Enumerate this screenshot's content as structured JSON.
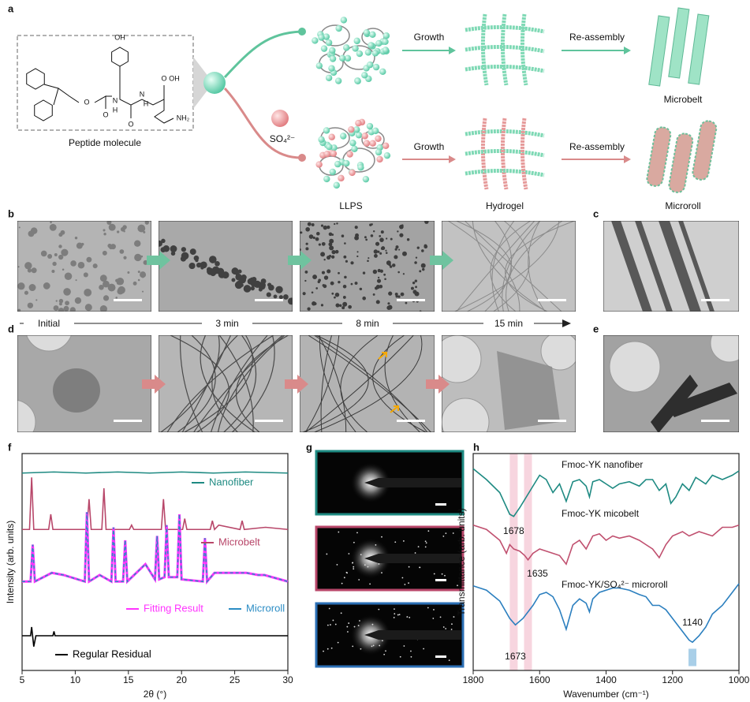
{
  "panel_labels": [
    "a",
    "b",
    "c",
    "d",
    "e",
    "f",
    "g",
    "h"
  ],
  "diagram": {
    "molecule_label": "Peptide molecule",
    "atoms": [
      "OH",
      "O",
      "O",
      "N",
      "H",
      "N",
      "H",
      "O",
      "O",
      "OH",
      "NH₂"
    ],
    "ion_label": "SO₄²⁻",
    "growth": [
      "Growth",
      "Growth"
    ],
    "reassembly": [
      "Re-assembly",
      "Re-assembly"
    ],
    "stage_labels": [
      "LLPS",
      "Hydrogel"
    ],
    "product_labels": [
      "Microbelt",
      "Microroll"
    ]
  },
  "timeline": [
    "Initial",
    "3 min",
    "8 min",
    "15 min"
  ],
  "chart_data": [
    {
      "type": "line",
      "xlabel": "2θ (°)",
      "ylabel": "Intensity (arb. units)",
      "xlim": [
        5,
        30
      ],
      "xticks": [
        5,
        10,
        15,
        20,
        25,
        30
      ],
      "ylim": [
        0,
        100
      ],
      "series": [
        {
          "name": "Nanofiber",
          "color": "#1e8a82",
          "x": [
            5,
            8,
            11,
            14,
            17,
            20,
            23,
            26,
            30
          ],
          "values": [
            91,
            91.5,
            91,
            91.5,
            91,
            91.5,
            91,
            91.5,
            91
          ]
        },
        {
          "name": "Microbelt",
          "color": "#b8476a",
          "x": [
            5,
            5.7,
            5.9,
            6.1,
            7.5,
            7.7,
            7.9,
            11.1,
            11.3,
            11.5,
            12.5,
            12.7,
            12.9,
            15.1,
            15.3,
            15.5,
            18.1,
            18.3,
            18.5,
            20.1,
            20.3,
            20.5,
            22.7,
            22.9,
            23.1,
            23.5,
            25.5,
            25.7,
            25.9,
            27.9,
            30
          ],
          "values": [
            65,
            65,
            89,
            65,
            65,
            72,
            65,
            65,
            79,
            65,
            65,
            84,
            65,
            65,
            67,
            65,
            65,
            79,
            65,
            65,
            70,
            65,
            65,
            69,
            65,
            67,
            65,
            69,
            65,
            66,
            65
          ]
        },
        {
          "name": "Fitting Result",
          "color": "#ff33ff",
          "x": [
            5,
            5.8,
            6.0,
            6.2,
            7.8,
            8.9,
            10.9,
            11.1,
            11.3,
            12.3,
            13.4,
            13.6,
            13.8,
            14.5,
            14.7,
            14.9,
            16.6,
            17.5,
            17.7,
            17.9,
            18.4,
            18.6,
            18.8,
            19.6,
            19.8,
            20.0,
            22.0,
            22.2,
            22.4,
            23.1,
            26.1,
            27.2,
            27.8,
            30
          ],
          "values": [
            41,
            41,
            58,
            41,
            45,
            44,
            41,
            73,
            41,
            44,
            41,
            66,
            41,
            41,
            60,
            41,
            49,
            42,
            62,
            42,
            43,
            67,
            43,
            43,
            72,
            42,
            41,
            61,
            41,
            45,
            45,
            44,
            44,
            41
          ]
        },
        {
          "name": "Microroll",
          "color": "#2b8cc4",
          "line_style": "dashed",
          "x": [
            5,
            5.8,
            6.0,
            6.2,
            7.8,
            8.9,
            10.9,
            11.1,
            11.3,
            12.3,
            13.4,
            13.6,
            13.8,
            14.5,
            14.7,
            14.9,
            16.6,
            17.5,
            17.7,
            17.9,
            18.4,
            18.6,
            18.8,
            19.6,
            19.8,
            20.0,
            22.0,
            22.2,
            22.4,
            23.1,
            26.1,
            27.2,
            27.8,
            30
          ],
          "values": [
            41,
            41,
            58,
            41,
            45,
            44,
            41,
            73,
            41,
            44,
            41,
            66,
            41,
            41,
            60,
            41,
            49,
            42,
            62,
            42,
            43,
            67,
            43,
            43,
            72,
            42,
            41,
            61,
            41,
            45,
            45,
            44,
            44,
            41
          ]
        },
        {
          "name": "Regular Residual",
          "color": "#000000",
          "x": [
            5,
            5.8,
            5.9,
            6.1,
            6.3,
            7.9,
            8.0,
            8.1,
            30
          ],
          "values": [
            16,
            16,
            20,
            11,
            16,
            16,
            18,
            16,
            16
          ]
        }
      ]
    },
    {
      "type": "line",
      "xlabel": "Wavenumber (cm⁻¹)",
      "ylabel": "Transmittance (arb. units)",
      "xlim": [
        1800,
        1000
      ],
      "xticks": [
        1800,
        1600,
        1400,
        1200,
        1000
      ],
      "ylim": [
        0,
        100
      ],
      "series": [
        {
          "name": "Fmoc-YK nanofiber",
          "color": "#1e8a82",
          "x": [
            1800,
            1760,
            1720,
            1690,
            1678,
            1660,
            1640,
            1620,
            1600,
            1580,
            1560,
            1540,
            1520,
            1500,
            1480,
            1460,
            1450,
            1440,
            1420,
            1400,
            1380,
            1360,
            1330,
            1300,
            1280,
            1260,
            1240,
            1220,
            1205,
            1190,
            1170,
            1150,
            1130,
            1100,
            1080,
            1050,
            1020,
            1000
          ],
          "values": [
            93,
            88,
            82,
            72,
            71,
            75,
            80,
            85,
            90,
            88,
            82,
            86,
            78,
            87,
            88,
            85,
            80,
            87,
            88,
            86,
            84,
            86,
            87,
            85,
            88,
            88,
            83,
            86,
            77,
            80,
            86,
            83,
            89,
            86,
            90,
            88,
            90,
            92
          ]
        },
        {
          "name": "Fmoc-YK micobelt",
          "color": "#c0506f",
          "x": [
            1800,
            1760,
            1720,
            1700,
            1690,
            1678,
            1660,
            1645,
            1635,
            1620,
            1600,
            1580,
            1560,
            1540,
            1520,
            1500,
            1480,
            1460,
            1440,
            1420,
            1400,
            1380,
            1360,
            1330,
            1300,
            1280,
            1260,
            1240,
            1220,
            1200,
            1170,
            1150,
            1120,
            1080,
            1050,
            1020,
            1000
          ],
          "values": [
            67,
            65,
            60,
            54,
            58,
            56,
            55,
            53,
            51,
            54,
            56,
            55,
            54,
            53,
            49,
            58,
            60,
            56,
            62,
            63,
            60,
            62,
            61,
            62,
            60,
            58,
            56,
            52,
            58,
            62,
            64,
            62,
            64,
            62,
            66,
            66,
            67
          ]
        },
        {
          "name": "Fmoc-YK/SO₄²⁻ microroll",
          "color": "#2b7fbf",
          "x": [
            1800,
            1760,
            1720,
            1690,
            1673,
            1650,
            1620,
            1600,
            1580,
            1560,
            1540,
            1520,
            1500,
            1480,
            1460,
            1450,
            1440,
            1420,
            1400,
            1380,
            1360,
            1330,
            1300,
            1280,
            1260,
            1240,
            1220,
            1200,
            1170,
            1150,
            1140,
            1120,
            1100,
            1080,
            1050,
            1020,
            1000
          ],
          "values": [
            39,
            37,
            32,
            24,
            21,
            24,
            30,
            35,
            36,
            34,
            28,
            19,
            30,
            33,
            31,
            27,
            33,
            36,
            37,
            38,
            38,
            37,
            35,
            34,
            30,
            30,
            28,
            24,
            18,
            14,
            13,
            16,
            20,
            26,
            30,
            36,
            40
          ]
        }
      ],
      "annotations": [
        {
          "x": 1678,
          "band": "#f7d5df"
        },
        {
          "x": 1635,
          "band": "#f7d5df"
        },
        {
          "x": 1673
        },
        {
          "x": 1140,
          "band": "#a9cfe8"
        }
      ]
    }
  ]
}
